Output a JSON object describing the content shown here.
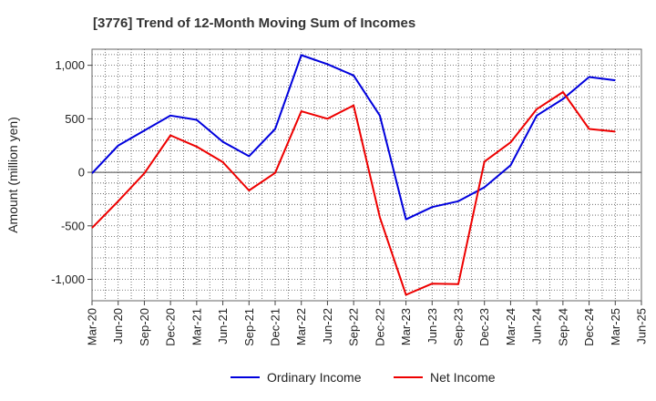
{
  "chart_data": {
    "type": "line",
    "title": "[3776]  Trend of 12-Month Moving Sum of Incomes",
    "xlabel": "",
    "ylabel": "Amount (million yen)",
    "ylim": [
      -1200,
      1150
    ],
    "yticks": [
      -1000,
      -500,
      0,
      500,
      1000
    ],
    "ytick_labels": [
      "-1,000",
      "-500",
      "0",
      "500",
      "1,000"
    ],
    "categories": [
      "Mar-20",
      "Jun-20",
      "Sep-20",
      "Dec-20",
      "Mar-21",
      "Jun-21",
      "Sep-21",
      "Dec-21",
      "Mar-22",
      "Jun-22",
      "Sep-22",
      "Dec-22",
      "Mar-23",
      "Jun-23",
      "Sep-23",
      "Dec-23",
      "Mar-24",
      "Jun-24",
      "Sep-24",
      "Dec-24",
      "Mar-25",
      "Jun-25"
    ],
    "series": [
      {
        "name": "Ordinary Income",
        "color": "#0000dd",
        "values": [
          -10,
          250,
          390,
          530,
          490,
          285,
          150,
          405,
          1095,
          1010,
          905,
          530,
          -440,
          -325,
          -270,
          -140,
          65,
          530,
          685,
          890,
          860,
          null
        ]
      },
      {
        "name": "Net Income",
        "color": "#ee0000",
        "values": [
          -520,
          -270,
          -10,
          345,
          240,
          95,
          -170,
          -5,
          570,
          500,
          625,
          -420,
          -1145,
          -1040,
          -1045,
          100,
          280,
          590,
          750,
          405,
          380,
          null
        ]
      }
    ],
    "grid": true,
    "legend_position": "bottom-center"
  }
}
